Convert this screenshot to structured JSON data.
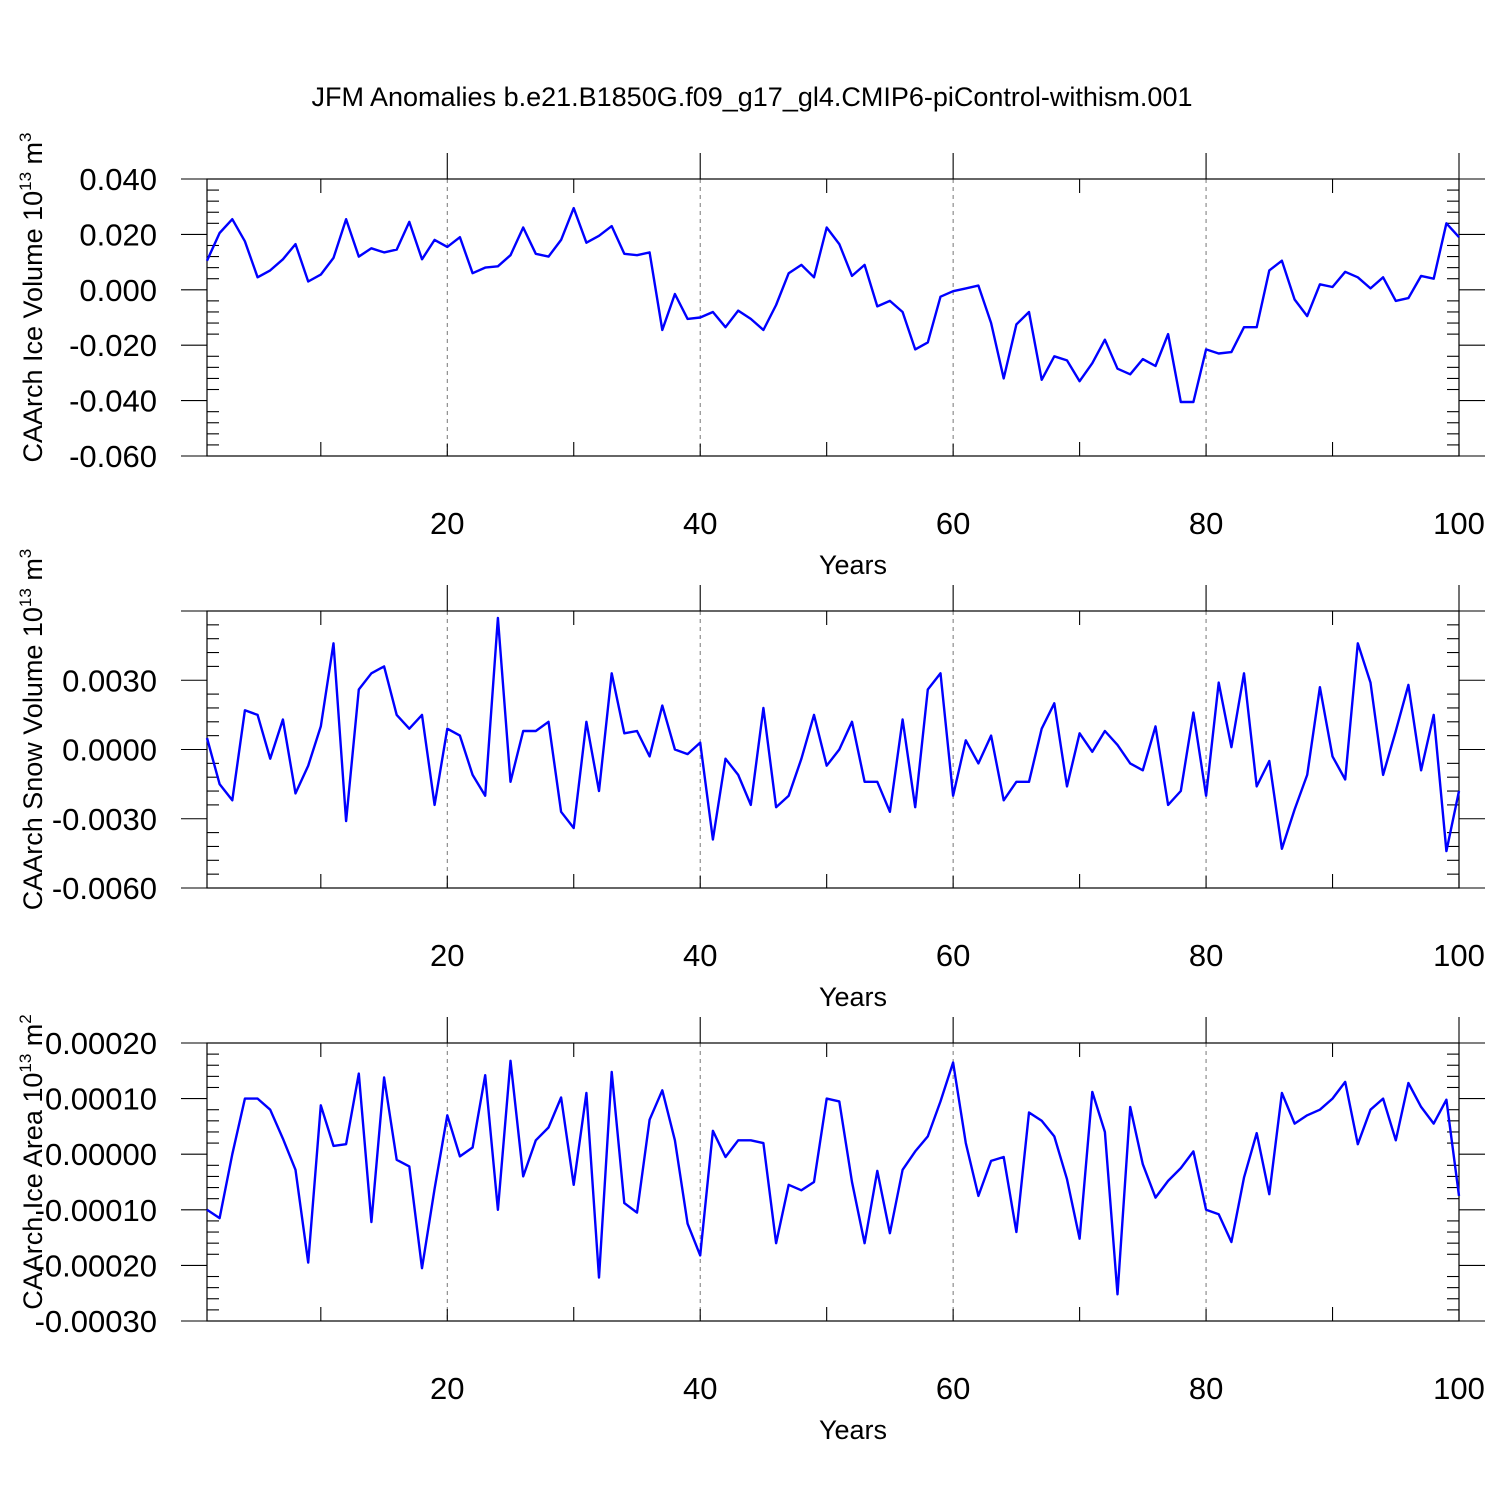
{
  "title": "JFM Anomalies b.e21.B1850G.f09_g17_gl4.CMIP6-piControl-withism.001",
  "colors": {
    "series": "#0000ff",
    "axis": "#000000",
    "grid": "#777777"
  },
  "chart_data": [
    {
      "type": "line",
      "xlabel": "Years",
      "ylabel": "CAArch Ice Volume 10",
      "ylabel_exp": "13",
      "ylabel_unit": " m",
      "ylabel_unit_exp": "3",
      "xlim": [
        1,
        100
      ],
      "ylim": [
        -0.06,
        0.04
      ],
      "xticks": [
        20,
        40,
        60,
        80,
        100
      ],
      "xtick_labels": [
        "20",
        "40",
        "60",
        "80",
        "100"
      ],
      "yticks": [
        0.04,
        0.02,
        0.0,
        -0.02,
        -0.04,
        -0.06
      ],
      "ytick_labels": [
        "0.040",
        "0.020",
        "0.000",
        "-0.020",
        "-0.040",
        "-0.060"
      ],
      "grid_x": [
        20,
        40,
        60,
        80
      ],
      "values": [
        0.0105,
        0.0205,
        0.0255,
        0.0175,
        0.0045,
        0.007,
        0.011,
        0.0165,
        0.003,
        0.0055,
        0.0115,
        0.0255,
        0.012,
        0.015,
        0.0135,
        0.0145,
        0.0245,
        0.011,
        0.018,
        0.0155,
        0.019,
        0.006,
        0.008,
        0.0085,
        0.0125,
        0.0225,
        0.013,
        0.012,
        0.018,
        0.0295,
        0.017,
        0.0195,
        0.023,
        0.013,
        0.0125,
        0.0135,
        -0.0145,
        -0.0015,
        -0.0105,
        -0.01,
        -0.008,
        -0.0135,
        -0.0075,
        -0.0105,
        -0.0145,
        -0.0055,
        0.006,
        0.009,
        0.0045,
        0.0225,
        0.0165,
        0.005,
        0.009,
        -0.006,
        -0.004,
        -0.008,
        -0.0215,
        -0.019,
        -0.0025,
        -0.0005,
        0.0005,
        0.0015,
        -0.012,
        -0.032,
        -0.0125,
        -0.008,
        -0.0325,
        -0.024,
        -0.0255,
        -0.033,
        -0.0265,
        -0.018,
        -0.0285,
        -0.0305,
        -0.025,
        -0.0275,
        -0.016,
        -0.0405,
        -0.0405,
        -0.0215,
        -0.023,
        -0.0225,
        -0.0135,
        -0.0135,
        0.007,
        0.0105,
        -0.0035,
        -0.0095,
        0.002,
        0.001,
        0.0065,
        0.0045,
        0.0005,
        0.0045,
        -0.004,
        -0.003,
        0.005,
        0.004,
        0.024,
        0.019
      ]
    },
    {
      "type": "line",
      "xlabel": "Years",
      "ylabel": "CAArch Snow Volume 10",
      "ylabel_exp": "13",
      "ylabel_unit": " m",
      "ylabel_unit_exp": "3",
      "xlim": [
        1,
        100
      ],
      "ylim": [
        -0.006,
        0.006
      ],
      "xticks": [
        20,
        40,
        60,
        80,
        100
      ],
      "xtick_labels": [
        "20",
        "40",
        "60",
        "80",
        "100"
      ],
      "yticks": [
        0.003,
        0.0,
        -0.003,
        -0.006
      ],
      "ytick_labels": [
        "0.0030",
        "0.0000",
        "-0.0030",
        "-0.0060"
      ],
      "grid_x": [
        20,
        40,
        60,
        80
      ],
      "values": [
        0.0005,
        -0.0015,
        -0.0022,
        0.0017,
        0.0015,
        -0.0004,
        0.0013,
        -0.0019,
        -0.0007,
        0.001,
        0.0046,
        -0.0031,
        0.0026,
        0.0033,
        0.0036,
        0.0015,
        0.0009,
        0.0015,
        -0.0024,
        0.0009,
        0.0006,
        -0.0011,
        -0.002,
        0.0057,
        -0.0014,
        0.0008,
        0.0008,
        0.0012,
        -0.0027,
        -0.0034,
        0.0012,
        -0.0018,
        0.0033,
        0.0007,
        0.0008,
        -0.0003,
        0.0019,
        0.0,
        -0.0002,
        0.0003,
        -0.0039,
        -0.0004,
        -0.0011,
        -0.0024,
        0.0018,
        -0.0025,
        -0.002,
        -0.0004,
        0.0015,
        -0.0007,
        0.0,
        0.0012,
        -0.0014,
        -0.0014,
        -0.0027,
        0.0013,
        -0.0025,
        0.0026,
        0.0033,
        -0.002,
        0.0004,
        -0.0006,
        0.0006,
        -0.0022,
        -0.0014,
        -0.0014,
        0.0009,
        0.002,
        -0.0016,
        0.0007,
        -0.0001,
        0.0008,
        0.0002,
        -0.0006,
        -0.0009,
        0.001,
        -0.0024,
        -0.0018,
        0.0016,
        -0.002,
        0.0029,
        0.0001,
        0.0033,
        -0.0016,
        -0.0005,
        -0.0043,
        -0.0026,
        -0.0011,
        0.0027,
        -0.0003,
        -0.0013,
        0.0046,
        0.0029,
        -0.0011,
        0.0008,
        0.0028,
        -0.0009,
        0.0015,
        -0.0044,
        -0.0018
      ]
    },
    {
      "type": "line",
      "xlabel": "Years",
      "ylabel": "CAArch Ice Area 10",
      "ylabel_exp": "13",
      "ylabel_unit": " m",
      "ylabel_unit_exp": "2",
      "xlim": [
        1,
        100
      ],
      "ylim": [
        -0.0003,
        0.0002
      ],
      "xticks": [
        20,
        40,
        60,
        80,
        100
      ],
      "xtick_labels": [
        "20",
        "40",
        "60",
        "80",
        "100"
      ],
      "yticks": [
        0.0002,
        0.0001,
        0.0,
        -0.0001,
        -0.0002,
        -0.0003
      ],
      "ytick_labels": [
        "0.00020",
        "0.00010",
        "0.00000",
        "-0.00010",
        "-0.00020",
        "-0.00030"
      ],
      "grid_x": [
        20,
        40,
        60,
        80
      ],
      "values": [
        -0.0001,
        -0.000115,
        0.0,
        0.0001,
        0.0001,
        8e-05,
        2.8e-05,
        -2.8e-05,
        -0.000195,
        8.8e-05,
        1.5e-05,
        1.8e-05,
        0.000145,
        -0.000122,
        0.000138,
        -1e-05,
        -2.2e-05,
        -0.000205,
        -6.2e-05,
        7e-05,
        -4e-06,
        1.2e-05,
        0.000142,
        -0.0001,
        0.000168,
        -4e-05,
        2.5e-05,
        4.8e-05,
        0.000102,
        -5.5e-05,
        0.00011,
        -0.000222,
        0.000148,
        -8.8e-05,
        -0.000105,
        6.2e-05,
        0.000115,
        2.5e-05,
        -0.000125,
        -0.000182,
        4.2e-05,
        -5e-06,
        2.5e-05,
        2.5e-05,
        2e-05,
        -0.00016,
        -5.5e-05,
        -6.5e-05,
        -5e-05,
        0.0001,
        9.5e-05,
        -5e-05,
        -0.00016,
        -3e-05,
        -0.000142,
        -2.8e-05,
        5e-06,
        3.2e-05,
        9.5e-05,
        0.000165,
        2e-05,
        -7.5e-05,
        -1.2e-05,
        -5e-06,
        -0.00014,
        7.5e-05,
        6e-05,
        3.2e-05,
        -4.5e-05,
        -0.000152,
        0.000112,
        4e-05,
        -0.000252,
        8.5e-05,
        -1.8e-05,
        -7.8e-05,
        -4.8e-05,
        -2.5e-05,
        5e-06,
        -0.0001,
        -0.000108,
        -0.000158,
        -4.2e-05,
        3.8e-05,
        -7.2e-05,
        0.00011,
        5.5e-05,
        7e-05,
        8e-05,
        0.0001,
        0.00013,
        1.8e-05,
        8e-05,
        0.0001,
        2.5e-05,
        0.000128,
        8.5e-05,
        5.5e-05,
        9.8e-05,
        -7.5e-05
      ]
    }
  ]
}
